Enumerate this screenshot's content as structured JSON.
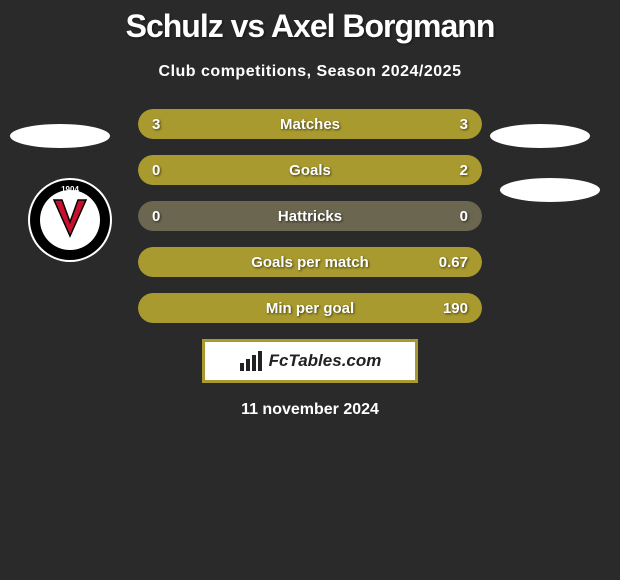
{
  "title": "Schulz vs Axel Borgmann",
  "subtitle": "Club competitions, Season 2024/2025",
  "date": "11 november 2024",
  "colors": {
    "bar_primary": "#a89a2e",
    "bar_empty": "#6b6650",
    "background": "#2a2a2a",
    "box_border": "#a89a2e",
    "text": "#ffffff"
  },
  "stats": [
    {
      "label": "Matches",
      "left_val": "3",
      "right_val": "3",
      "left_pct": 50,
      "right_pct": 50,
      "left_color": "#a89a2e",
      "right_color": "#a89a2e"
    },
    {
      "label": "Goals",
      "left_val": "0",
      "right_val": "2",
      "left_pct": 0,
      "right_pct": 100,
      "left_color": "#6b6650",
      "right_color": "#a89a2e"
    },
    {
      "label": "Hattricks",
      "left_val": "0",
      "right_val": "0",
      "left_pct": 0,
      "right_pct": 0,
      "left_color": "#6b6650",
      "right_color": "#6b6650",
      "empty": true
    },
    {
      "label": "Goals per match",
      "left_val": "",
      "right_val": "0.67",
      "left_pct": 0,
      "right_pct": 100,
      "left_color": "#6b6650",
      "right_color": "#a89a2e"
    },
    {
      "label": "Min per goal",
      "left_val": "",
      "right_val": "190",
      "left_pct": 0,
      "right_pct": 100,
      "left_color": "#6b6650",
      "right_color": "#a89a2e"
    }
  ],
  "fctables": {
    "label": "FcTables.com"
  },
  "club_badge": {
    "name": "Viktoria Köln",
    "year": "1904",
    "outer_color": "#ffffff",
    "ring_color": "#000000",
    "v_color": "#c8102e",
    "text_color": "#000000"
  }
}
